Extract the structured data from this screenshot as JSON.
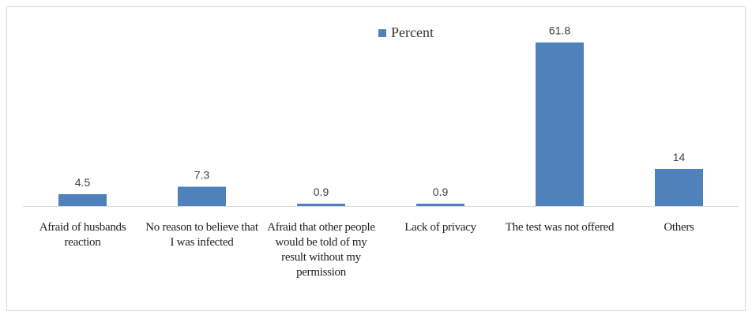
{
  "chart_data": {
    "type": "bar",
    "categories": [
      "Afraid of husbands reaction",
      "No reason to believe that I was infected",
      "Afraid that other people would be told of my result without my permission",
      "Lack of privacy",
      "The test was not offered",
      "Others"
    ],
    "series": [
      {
        "name": "Percent",
        "values": [
          4.5,
          7.3,
          0.9,
          0.9,
          61.8,
          14
        ],
        "color": "#4f81bd"
      }
    ],
    "data_labels": [
      "4.5",
      "7.3",
      "0.9",
      "0.9",
      "61.8",
      "14"
    ],
    "ylim": [
      0,
      65
    ],
    "legend": "top-center",
    "grid": false,
    "title": "",
    "xlabel": "",
    "ylabel": ""
  }
}
